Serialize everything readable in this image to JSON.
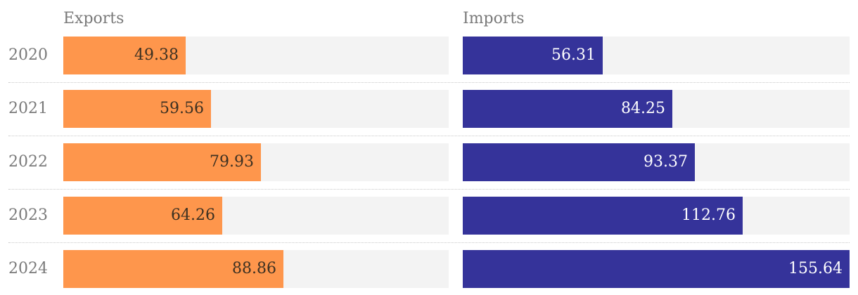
{
  "chart_data": {
    "type": "bar",
    "orientation": "horizontal",
    "layout": "small-multiples",
    "categories": [
      "2020",
      "2021",
      "2022",
      "2023",
      "2024"
    ],
    "series": [
      {
        "name": "Exports",
        "color": "#fe964c",
        "label_color": "#3d3122",
        "values": [
          49.38,
          59.56,
          79.93,
          64.26,
          88.86
        ]
      },
      {
        "name": "Imports",
        "color": "#35339a",
        "label_color": "#ffffff",
        "values": [
          56.31,
          84.25,
          93.37,
          112.76,
          155.64
        ]
      }
    ],
    "track_color": "#f3f3f3",
    "grid": false,
    "legend": "none"
  }
}
